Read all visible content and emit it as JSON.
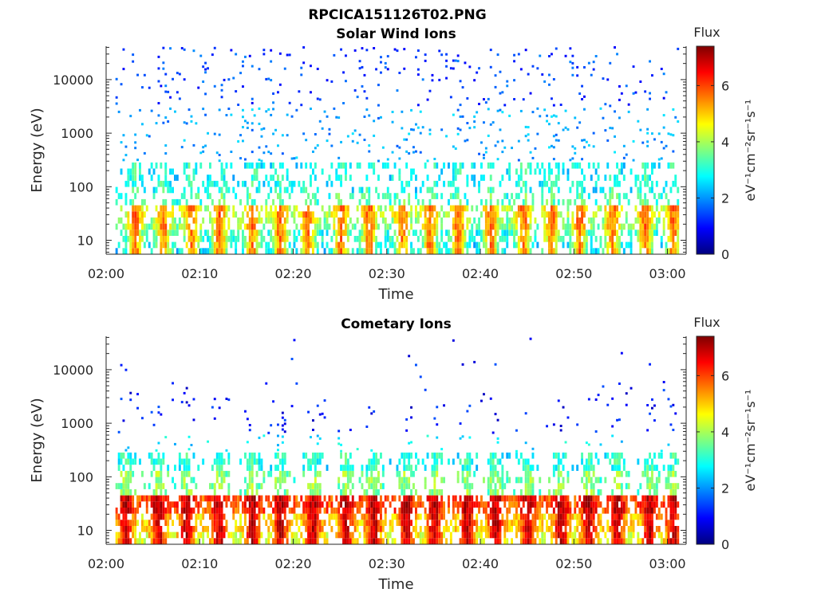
{
  "figure_title": "RPCICA151126T02.PNG",
  "colormap": [
    "#00007f",
    "#0000ff",
    "#007fff",
    "#00ffff",
    "#7fff7f",
    "#ffff00",
    "#ff7f00",
    "#ff0000",
    "#7f0000"
  ],
  "chart_data": [
    {
      "type": "heatmap",
      "title": "Solar Wind Ions",
      "xlabel": "Time",
      "ylabel": "Energy (eV)",
      "y_scale": "log",
      "ylim": [
        5.5,
        42000
      ],
      "y_ticks": [
        10,
        100,
        1000,
        10000
      ],
      "y_tick_labels": [
        "10",
        "100",
        "1000",
        "10000"
      ],
      "x_range_minutes": [
        0,
        62
      ],
      "x_ticks": [
        0,
        10,
        20,
        30,
        40,
        50,
        60
      ],
      "x_tick_labels": [
        "02:00",
        "02:10",
        "02:20",
        "02:30",
        "02:40",
        "02:50",
        "03:00"
      ],
      "colorbar": {
        "title": "Flux",
        "label": "eV⁻¹cm⁻²sr⁻¹s⁻¹",
        "range": [
          0,
          7.4
        ],
        "ticks": [
          0,
          2,
          4,
          6
        ],
        "tick_labels": [
          "0",
          "2",
          "4",
          "6"
        ]
      },
      "pulse_times_min": [
        3.0,
        6.0,
        9.0,
        12.0,
        15.5,
        18.5,
        21.5,
        25.0,
        28.0,
        31.5,
        34.5,
        37.5,
        41.0,
        44.5,
        47.5,
        50.5,
        54.0,
        57.5,
        60.5
      ],
      "bands": [
        {
          "energy_ev": [
            5.5,
            9
          ],
          "level": 3.3
        },
        {
          "energy_ev": [
            9,
            14
          ],
          "level": 3.6
        },
        {
          "energy_ev": [
            14,
            24
          ],
          "level": 4.4
        },
        {
          "energy_ev": [
            24,
            45
          ],
          "level": 4.8
        },
        {
          "energy_ev": [
            45,
            80
          ],
          "level": 3.0
        },
        {
          "energy_ev": [
            80,
            250
          ],
          "level": 2.6
        },
        {
          "energy_ev": [
            250,
            3000
          ],
          "level": 2.1
        },
        {
          "energy_ev": [
            3000,
            42000
          ],
          "level": 1.4
        }
      ],
      "peak_level": 5.8
    },
    {
      "type": "heatmap",
      "title": "Cometary Ions",
      "xlabel": "Time",
      "ylabel": "Energy (eV)",
      "y_scale": "log",
      "ylim": [
        5.5,
        42000
      ],
      "y_ticks": [
        10,
        100,
        1000,
        10000
      ],
      "y_tick_labels": [
        "10",
        "100",
        "1000",
        "10000"
      ],
      "x_range_minutes": [
        0,
        62
      ],
      "x_ticks": [
        0,
        10,
        20,
        30,
        40,
        50,
        60
      ],
      "x_tick_labels": [
        "02:00",
        "02:10",
        "02:20",
        "02:30",
        "02:40",
        "02:50",
        "03:00"
      ],
      "colorbar": {
        "title": "Flux",
        "label": "eV⁻¹cm⁻²sr⁻¹s⁻¹",
        "range": [
          0,
          7.4
        ],
        "ticks": [
          0,
          2,
          4,
          6
        ],
        "tick_labels": [
          "0",
          "2",
          "4",
          "6"
        ]
      },
      "pulse_times_min": [
        2.0,
        5.5,
        8.5,
        12.0,
        15.5,
        18.5,
        22.0,
        25.5,
        28.5,
        32.0,
        35.0,
        38.5,
        41.5,
        45.0,
        48.5,
        51.5,
        54.5,
        58.0,
        60.5
      ],
      "bands": [
        {
          "energy_ev": [
            5.5,
            10
          ],
          "level": 5.2
        },
        {
          "energy_ev": [
            10,
            20
          ],
          "level": 5.6
        },
        {
          "energy_ev": [
            20,
            45
          ],
          "level": 6.6
        },
        {
          "energy_ev": [
            45,
            120
          ],
          "level": 3.3
        },
        {
          "energy_ev": [
            120,
            600
          ],
          "level": 2.6
        },
        {
          "energy_ev": [
            600,
            42000
          ],
          "level": 1.0
        }
      ],
      "peak_level": 7.0
    }
  ]
}
